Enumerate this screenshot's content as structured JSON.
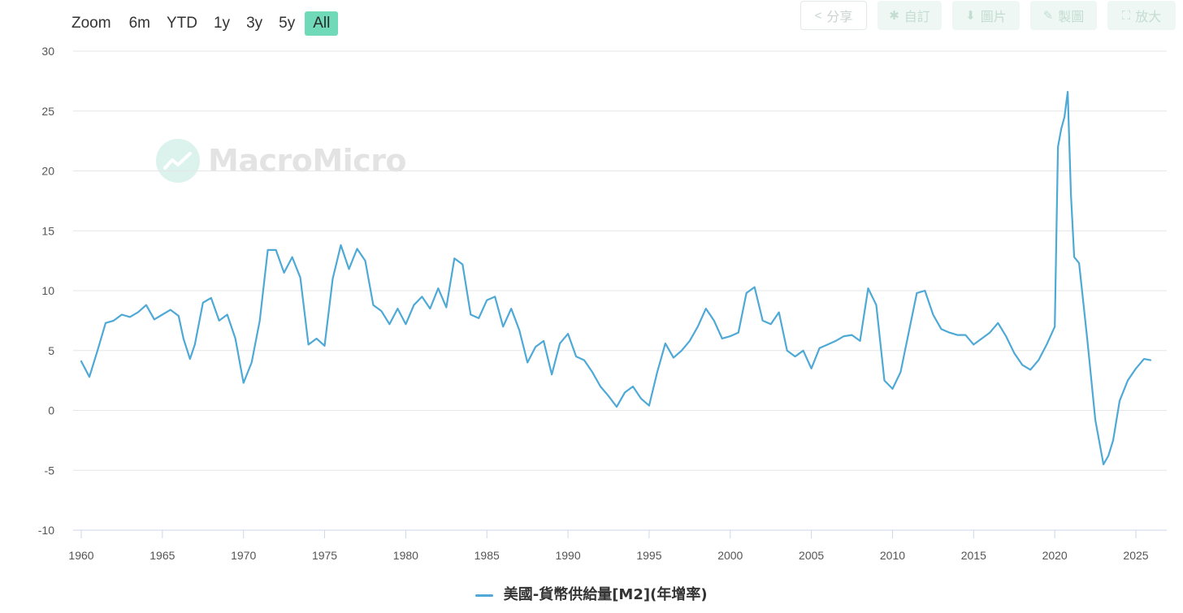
{
  "zoom": {
    "label": "Zoom",
    "buttons": [
      "6m",
      "YTD",
      "1y",
      "3y",
      "5y",
      "All"
    ],
    "active": "All",
    "active_color": "#6fd9b8"
  },
  "toolbar": {
    "share": "分享",
    "custom": "自訂",
    "image": "圖片",
    "draw": "製圖",
    "expand": "放大"
  },
  "watermark": {
    "text": "MacroMicro"
  },
  "chart_data": {
    "type": "line",
    "title": "",
    "xlabel": "",
    "ylabel": "",
    "xlim": [
      1959.5,
      2026.5
    ],
    "ylim": [
      -10,
      30
    ],
    "yticks": [
      30,
      25,
      20,
      15,
      10,
      5,
      0,
      -5,
      -10
    ],
    "xticks": [
      1960,
      1965,
      1970,
      1975,
      1980,
      1985,
      1990,
      1995,
      2000,
      2005,
      2010,
      2015,
      2020,
      2025
    ],
    "grid": true,
    "legend_position": "bottom",
    "series": [
      {
        "name": "美國-貨幣供給量[M2](年增率)",
        "color": "#4ea9d6",
        "x": [
          1960.0,
          1960.5,
          1961.0,
          1961.5,
          1962.0,
          1962.5,
          1963.0,
          1963.5,
          1964.0,
          1964.5,
          1965.0,
          1965.5,
          1966.0,
          1966.3,
          1966.7,
          1967.0,
          1967.5,
          1968.0,
          1968.5,
          1969.0,
          1969.5,
          1970.0,
          1970.5,
          1971.0,
          1971.5,
          1972.0,
          1972.5,
          1973.0,
          1973.5,
          1974.0,
          1974.5,
          1975.0,
          1975.5,
          1976.0,
          1976.5,
          1977.0,
          1977.5,
          1978.0,
          1978.5,
          1979.0,
          1979.5,
          1980.0,
          1980.5,
          1981.0,
          1981.5,
          1982.0,
          1982.5,
          1983.0,
          1983.5,
          1984.0,
          1984.5,
          1985.0,
          1985.5,
          1986.0,
          1986.5,
          1987.0,
          1987.5,
          1988.0,
          1988.5,
          1989.0,
          1989.5,
          1990.0,
          1990.5,
          1991.0,
          1991.5,
          1992.0,
          1992.5,
          1993.0,
          1993.5,
          1994.0,
          1994.5,
          1995.0,
          1995.5,
          1996.0,
          1996.5,
          1997.0,
          1997.5,
          1998.0,
          1998.5,
          1999.0,
          1999.5,
          2000.0,
          2000.5,
          2001.0,
          2001.5,
          2002.0,
          2002.5,
          2003.0,
          2003.5,
          2004.0,
          2004.5,
          2005.0,
          2005.5,
          2006.0,
          2006.5,
          2007.0,
          2007.5,
          2008.0,
          2008.5,
          2009.0,
          2009.5,
          2010.0,
          2010.5,
          2011.0,
          2011.5,
          2012.0,
          2012.5,
          2013.0,
          2013.5,
          2014.0,
          2014.5,
          2015.0,
          2015.5,
          2016.0,
          2016.5,
          2017.0,
          2017.5,
          2018.0,
          2018.5,
          2019.0,
          2019.5,
          2020.0,
          2020.2,
          2020.4,
          2020.6,
          2020.8,
          2021.0,
          2021.2,
          2021.5,
          2022.0,
          2022.5,
          2023.0,
          2023.3,
          2023.6,
          2024.0,
          2024.5,
          2025.0,
          2025.5,
          2025.9
        ],
        "y": [
          4.1,
          2.8,
          5.0,
          7.3,
          7.5,
          8.0,
          7.8,
          8.2,
          8.8,
          7.6,
          8.0,
          8.4,
          7.9,
          6.0,
          4.3,
          5.5,
          9.0,
          9.4,
          7.5,
          8.0,
          6.0,
          2.3,
          4.0,
          7.5,
          13.4,
          13.4,
          11.5,
          12.8,
          11.1,
          5.5,
          6.0,
          5.4,
          11.0,
          13.8,
          11.8,
          13.5,
          12.5,
          8.8,
          8.3,
          7.2,
          8.5,
          7.2,
          8.8,
          9.5,
          8.5,
          10.2,
          8.6,
          12.7,
          12.2,
          8.0,
          7.7,
          9.2,
          9.5,
          7.0,
          8.5,
          6.7,
          4.0,
          5.3,
          5.8,
          3.0,
          5.6,
          6.4,
          4.5,
          4.2,
          3.2,
          2.0,
          1.2,
          0.3,
          1.5,
          2.0,
          1.0,
          0.4,
          3.2,
          5.6,
          4.4,
          5.0,
          5.8,
          7.0,
          8.5,
          7.5,
          6.0,
          6.2,
          6.5,
          9.8,
          10.3,
          7.5,
          7.2,
          8.2,
          5.0,
          4.5,
          5.0,
          3.5,
          5.2,
          5.5,
          5.8,
          6.2,
          6.3,
          5.8,
          10.2,
          8.8,
          2.5,
          1.8,
          3.2,
          6.5,
          9.8,
          10.0,
          8.0,
          6.8,
          6.5,
          6.3,
          6.3,
          5.5,
          6.0,
          6.5,
          7.3,
          6.2,
          4.8,
          3.8,
          3.4,
          4.2,
          5.5,
          7.0,
          22.0,
          23.5,
          24.5,
          26.6,
          18.0,
          12.8,
          12.3,
          6.0,
          -0.8,
          -4.5,
          -3.8,
          -2.5,
          0.8,
          2.5,
          3.5,
          4.3,
          4.2
        ]
      }
    ]
  }
}
